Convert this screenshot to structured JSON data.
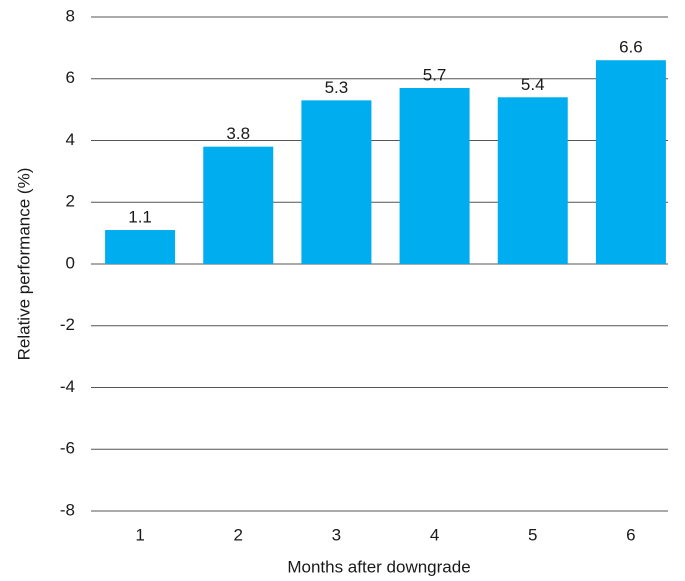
{
  "chart_data": {
    "type": "bar",
    "x_label": "Months after downgrade",
    "y_label": "Relative performance (%)",
    "categories": [
      "1",
      "2",
      "3",
      "4",
      "5",
      "6"
    ],
    "values": [
      1.1,
      3.8,
      5.3,
      5.7,
      5.4,
      6.6
    ],
    "color": "#00adee",
    "ylim": [
      -8,
      8
    ],
    "yticks": [
      -8,
      -6,
      -4,
      -2,
      0,
      2,
      4,
      6,
      8
    ],
    "grid": true
  }
}
